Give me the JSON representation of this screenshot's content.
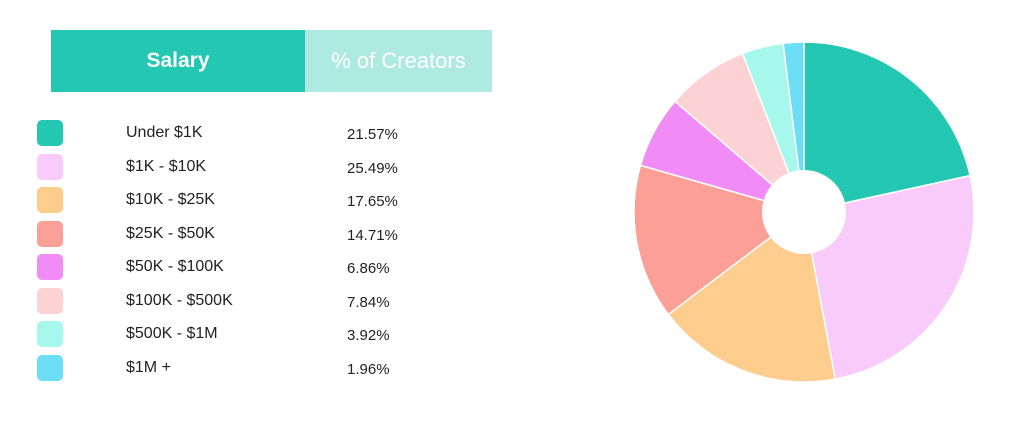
{
  "colors": {
    "header_salary": "#23C7B2",
    "header_pct": "#AEEAE2",
    "hole": "#FFFFFF"
  },
  "table": {
    "col1": "Salary",
    "col2": "% of Creators"
  },
  "chart_data": {
    "type": "pie",
    "donut": true,
    "categories": [
      "Under $1K",
      "$1K - $10K",
      "$10K - $25K",
      "$25K - $50K",
      "$50K - $100K",
      "$100K - $500K",
      "$500K - $1M",
      "$1M +"
    ],
    "value_labels": [
      "21.57%",
      "25.49%",
      "17.65%",
      "14.71%",
      "6.86%",
      "7.84%",
      "3.92%",
      "1.96%"
    ],
    "values": [
      21.57,
      25.49,
      17.65,
      14.71,
      6.86,
      7.84,
      3.92,
      1.96
    ],
    "colors": [
      "#23C7B2",
      "#F8CBFB",
      "#FDCD8E",
      "#FC9F96",
      "#F18BF5",
      "#FDD2D4",
      "#A6F8EC",
      "#6CDFF6"
    ],
    "legend_placement": "left"
  }
}
